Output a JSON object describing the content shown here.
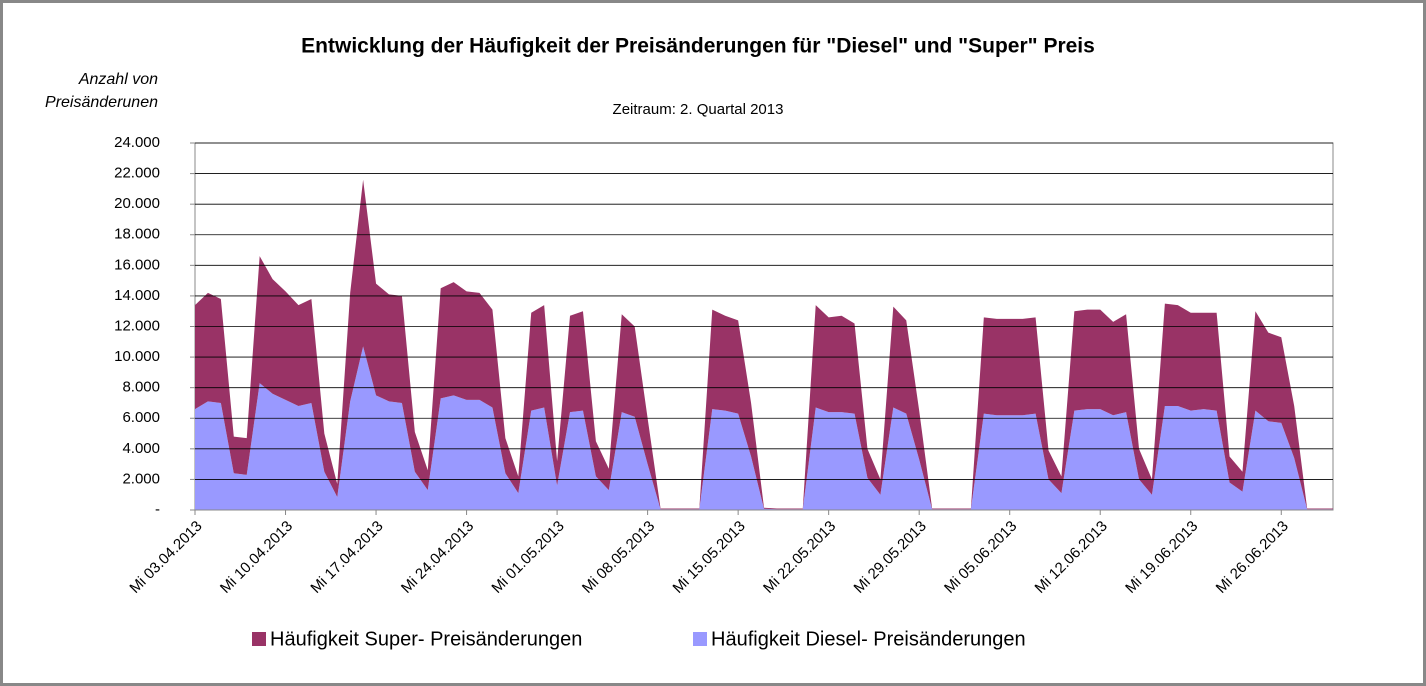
{
  "chart_data": {
    "type": "stacked_area",
    "title": "Entwicklung der Häufigkeit der Preisänderungen für \"Diesel\" und \"Super\" Preis",
    "subtitle": "Zeitraum: 2. Quartal 2013",
    "y_label": [
      "Anzahl von",
      "Preisänderunen"
    ],
    "categories": [
      "Mi 03.04.2013",
      null,
      null,
      null,
      null,
      null,
      null,
      "Mi 10.04.2013",
      null,
      null,
      null,
      null,
      null,
      null,
      "Mi 17.04.2013",
      null,
      null,
      null,
      null,
      null,
      null,
      "Mi 24.04.2013",
      null,
      null,
      null,
      null,
      null,
      null,
      "Mi 01.05.2013",
      null,
      null,
      null,
      null,
      null,
      null,
      "Mi 08.05.2013",
      null,
      null,
      null,
      null,
      null,
      null,
      "Mi 15.05.2013",
      null,
      null,
      null,
      null,
      null,
      null,
      "Mi 22.05.2013",
      null,
      null,
      null,
      null,
      null,
      null,
      "Mi 29.05.2013",
      null,
      null,
      null,
      null,
      null,
      null,
      "Mi 05.06.2013",
      null,
      null,
      null,
      null,
      null,
      null,
      "Mi 12.06.2013",
      null,
      null,
      null,
      null,
      null,
      null,
      "Mi 19.06.2013",
      null,
      null,
      null,
      null,
      null,
      null,
      "Mi 26.06.2013",
      null,
      null,
      null,
      null
    ],
    "series": [
      {
        "name": "Häufigkeit Diesel- Preisänderungen",
        "color": "#9999ff",
        "values": [
          6600,
          7100,
          7000,
          2400,
          2300,
          8300,
          7600,
          7200,
          6800,
          7000,
          2500,
          850,
          7100,
          10700,
          7500,
          7100,
          7000,
          2500,
          1300,
          7300,
          7500,
          7200,
          7200,
          6700,
          2400,
          1100,
          6500,
          6700,
          1600,
          6400,
          6500,
          2200,
          1300,
          6400,
          6100,
          3000,
          50,
          50,
          50,
          50,
          6600,
          6500,
          6300,
          3500,
          80,
          50,
          50,
          50,
          6700,
          6400,
          6400,
          6300,
          2100,
          1000,
          6700,
          6300,
          3300,
          50,
          50,
          50,
          50,
          6300,
          6200,
          6200,
          6200,
          6300,
          2000,
          1100,
          6500,
          6600,
          6600,
          6200,
          6400,
          2000,
          1000,
          6800,
          6800,
          6500,
          6600,
          6500,
          1800,
          1200,
          6500,
          5800,
          5700,
          3400,
          50,
          50,
          50
        ]
      },
      {
        "name": "Häufigkeit Super- Preisänderungen",
        "color": "#993366",
        "values": [
          6800,
          7100,
          6800,
          2400,
          2400,
          8300,
          7500,
          7100,
          6600,
          6800,
          2500,
          850,
          7100,
          10900,
          7300,
          7000,
          7000,
          2600,
          1300,
          7200,
          7400,
          7100,
          7000,
          6400,
          2300,
          1100,
          6400,
          6700,
          1600,
          6300,
          6500,
          2300,
          1400,
          6400,
          5900,
          3000,
          50,
          50,
          50,
          50,
          6500,
          6200,
          6100,
          3500,
          70,
          50,
          50,
          50,
          6700,
          6200,
          6300,
          5900,
          1900,
          1000,
          6600,
          6100,
          3200,
          50,
          50,
          50,
          50,
          6300,
          6300,
          6300,
          6300,
          6300,
          1900,
          1100,
          6500,
          6500,
          6500,
          6100,
          6400,
          2000,
          1000,
          6700,
          6600,
          6400,
          6300,
          6400,
          1700,
          1300,
          6500,
          5800,
          5600,
          3400,
          50,
          50,
          50
        ]
      }
    ],
    "ylim": [
      0,
      24000
    ],
    "yticks": [
      {
        "value": 0,
        "label": "-"
      },
      {
        "value": 2000,
        "label": "2.000"
      },
      {
        "value": 4000,
        "label": "4.000"
      },
      {
        "value": 6000,
        "label": "6.000"
      },
      {
        "value": 8000,
        "label": "8.000"
      },
      {
        "value": 10000,
        "label": "10.000"
      },
      {
        "value": 12000,
        "label": "12.000"
      },
      {
        "value": 14000,
        "label": "14.000"
      },
      {
        "value": 16000,
        "label": "16.000"
      },
      {
        "value": 18000,
        "label": "18.000"
      },
      {
        "value": 20000,
        "label": "20.000"
      },
      {
        "value": 22000,
        "label": "22.000"
      },
      {
        "value": 24000,
        "label": "24.000"
      }
    ],
    "grid": true,
    "legend": "bottom"
  }
}
